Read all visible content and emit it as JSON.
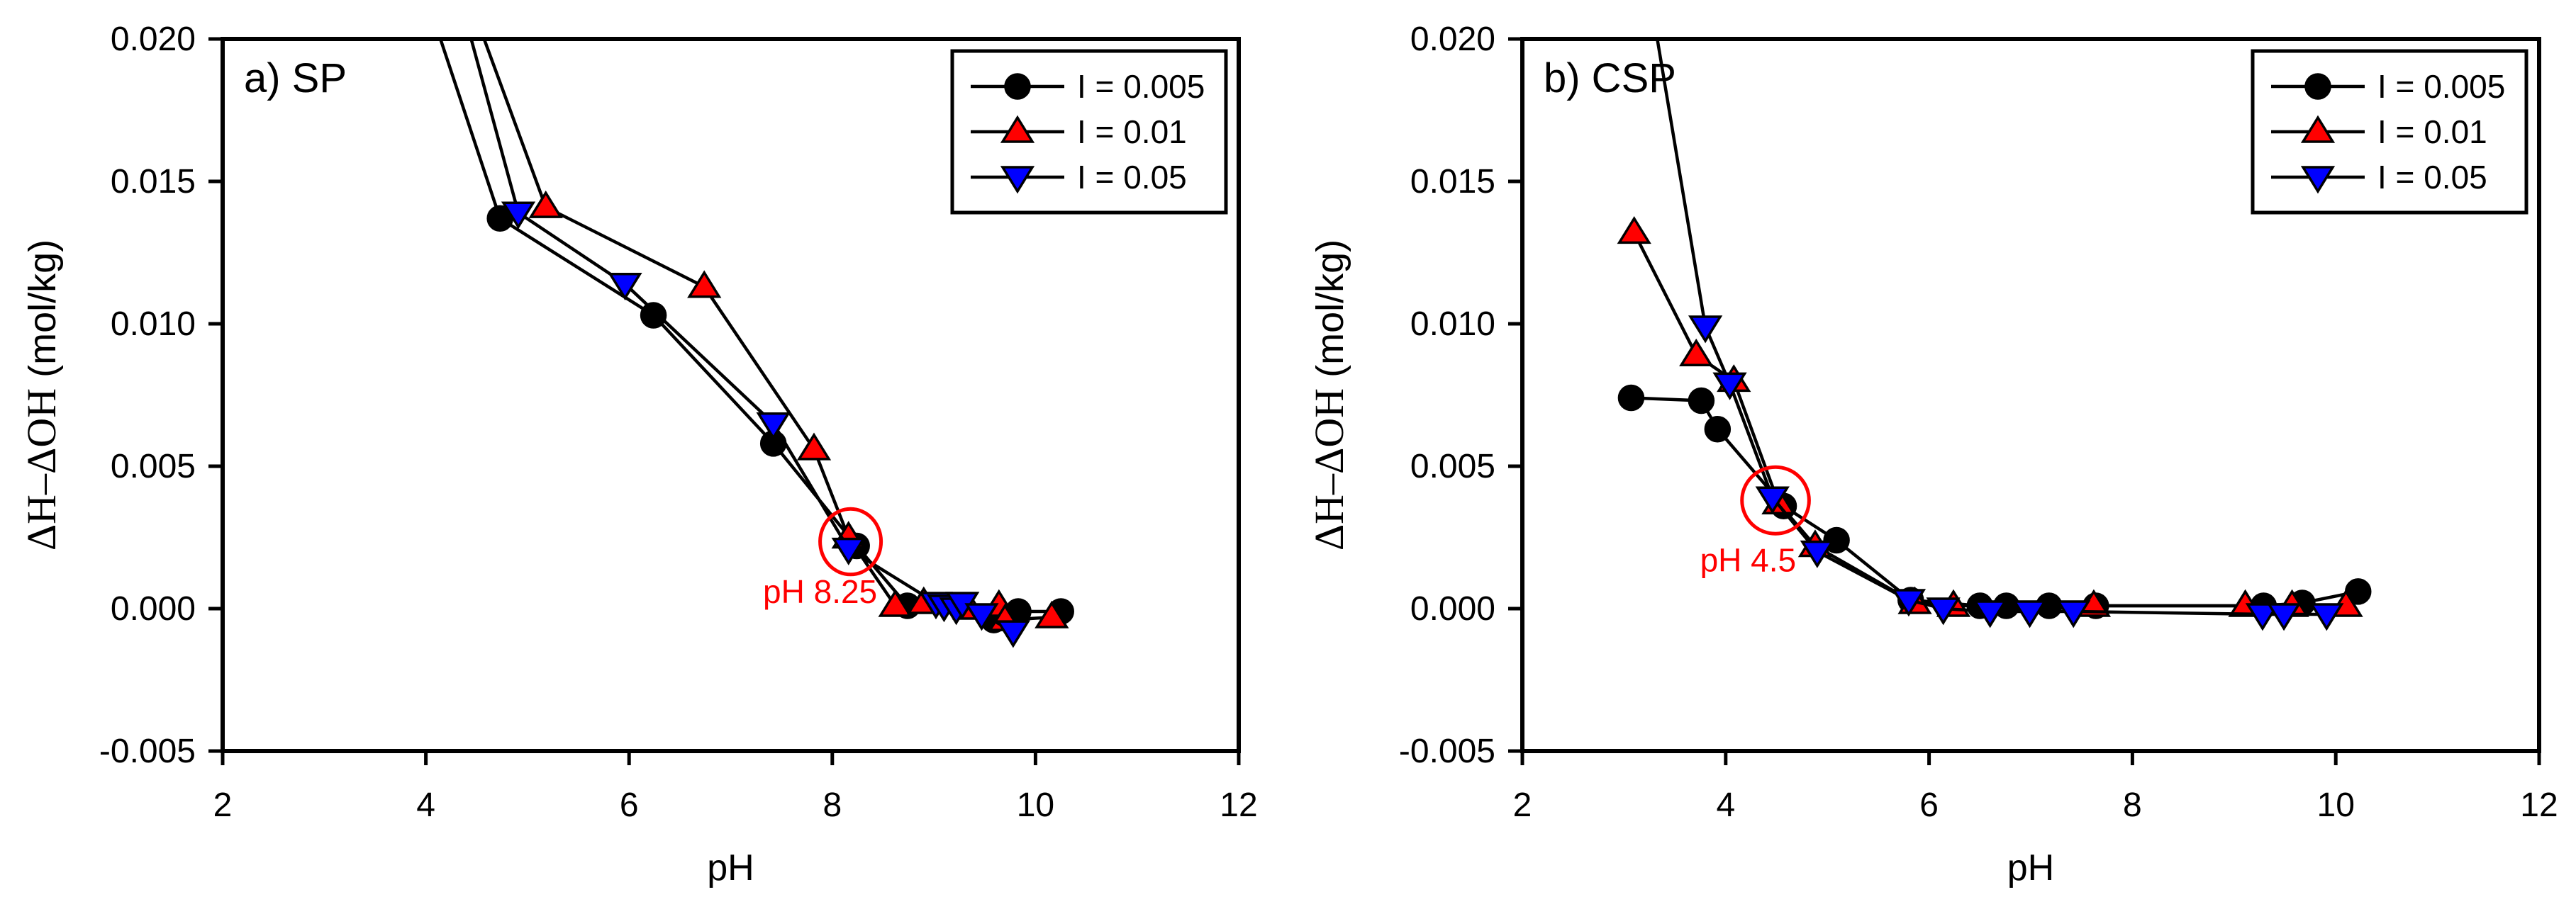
{
  "page": {
    "background": "#ffffff",
    "text_color": "#000000",
    "annotation_color": "#ff0000"
  },
  "chart_data": [
    {
      "type": "line",
      "panel_label": "a) SP",
      "xlabel": "pH",
      "ylabel_main": "ΔH–ΔOH",
      "ylabel_units": " (mol/kg)",
      "xlim": [
        2,
        12
      ],
      "ylim": [
        -0.005,
        0.02
      ],
      "xticks": [
        2,
        4,
        6,
        8,
        10,
        12
      ],
      "yticks": [
        -0.005,
        0.0,
        0.005,
        0.01,
        0.015,
        0.02
      ],
      "grid": false,
      "legend_position": "top-right",
      "series": [
        {
          "name": "I = 0.005",
          "marker": "circle",
          "color": "#000000",
          "points": [
            [
              4.05,
              0.021
            ],
            [
              4.73,
              0.0137
            ],
            [
              6.24,
              0.0103
            ],
            [
              7.42,
              0.0058
            ],
            [
              8.24,
              0.0022
            ],
            [
              8.74,
              0.0001
            ],
            [
              9.59,
              -0.0004
            ],
            [
              9.83,
              -0.0001
            ],
            [
              10.25,
              -0.0001
            ]
          ]
        },
        {
          "name": "I = 0.01",
          "marker": "triangle-up",
          "color": "#ff0000",
          "points": [
            [
              4.47,
              0.021
            ],
            [
              5.18,
              0.0141
            ],
            [
              6.74,
              0.0113
            ],
            [
              7.82,
              0.0056
            ],
            [
              8.16,
              0.0025
            ],
            [
              8.62,
              0.0001
            ],
            [
              8.9,
              0.0002
            ],
            [
              9.35,
              0.0
            ],
            [
              9.64,
              0.0001
            ],
            [
              9.7,
              -0.0004
            ],
            [
              10.16,
              -0.0003
            ]
          ]
        },
        {
          "name": "I = 0.05",
          "marker": "triangle-down",
          "color": "#0000ff",
          "points": [
            [
              4.37,
              0.021
            ],
            [
              4.91,
              0.0139
            ],
            [
              5.96,
              0.0114
            ],
            [
              7.42,
              0.0065
            ],
            [
              8.16,
              0.0021
            ],
            [
              9.02,
              0.0002
            ],
            [
              9.1,
              0.0001
            ],
            [
              9.22,
              0.0
            ],
            [
              9.28,
              0.0002
            ],
            [
              9.47,
              -0.0002
            ],
            [
              9.78,
              -0.0008
            ]
          ]
        }
      ],
      "annotation": {
        "label": "pH 8.25",
        "color": "#ff0000",
        "ellipse_center": [
          8.18,
          0.00235
        ],
        "ellipse_rx_data": 0.3,
        "ellipse_ry_data": 0.00115,
        "label_pos": [
          7.88,
          0.0006
        ]
      }
    },
    {
      "type": "line",
      "panel_label": "b) CSP",
      "xlabel": "pH",
      "ylabel_main": "ΔH–ΔOH",
      "ylabel_units": " (mol/kg)",
      "xlim": [
        2,
        12
      ],
      "ylim": [
        -0.005,
        0.02
      ],
      "xticks": [
        2,
        4,
        6,
        8,
        10,
        12
      ],
      "yticks": [
        -0.005,
        0.0,
        0.005,
        0.01,
        0.015,
        0.02
      ],
      "grid": false,
      "legend_position": "top-right",
      "series": [
        {
          "name": "I = 0.005",
          "marker": "circle",
          "color": "#000000",
          "points": [
            [
              3.07,
              0.0074
            ],
            [
              3.76,
              0.0073
            ],
            [
              3.92,
              0.0063
            ],
            [
              4.57,
              0.0036
            ],
            [
              5.09,
              0.0024
            ],
            [
              5.82,
              0.0003
            ],
            [
              6.5,
              0.0001
            ],
            [
              6.76,
              0.0001
            ],
            [
              7.18,
              0.0001
            ],
            [
              7.64,
              0.0001
            ],
            [
              9.29,
              0.0001
            ],
            [
              9.67,
              0.0002
            ],
            [
              10.22,
              0.0006
            ]
          ]
        },
        {
          "name": "I = 0.01",
          "marker": "triangle-up",
          "color": "#ff0000",
          "points": [
            [
              3.1,
              0.0132
            ],
            [
              3.71,
              0.0089
            ],
            [
              4.08,
              0.008
            ],
            [
              4.52,
              0.0037
            ],
            [
              4.88,
              0.0022
            ],
            [
              5.86,
              0.0002
            ],
            [
              6.24,
              0.0001
            ],
            [
              7.62,
              0.0001
            ],
            [
              9.11,
              0.0001
            ],
            [
              9.57,
              0.0001
            ],
            [
              10.1,
              0.0001
            ]
          ]
        },
        {
          "name": "I = 0.05",
          "marker": "triangle-down",
          "color": "#0000ff",
          "points": [
            [
              3.28,
              0.021
            ],
            [
              3.8,
              0.0099
            ],
            [
              4.04,
              0.0079
            ],
            [
              4.46,
              0.0039
            ],
            [
              4.9,
              0.002
            ],
            [
              5.8,
              0.0003
            ],
            [
              6.14,
              0.0
            ],
            [
              6.6,
              -0.0001
            ],
            [
              6.99,
              -0.0001
            ],
            [
              7.42,
              -0.0001
            ],
            [
              9.28,
              -0.0002
            ],
            [
              9.49,
              -0.0002
            ],
            [
              9.91,
              -0.0002
            ]
          ]
        }
      ],
      "annotation": {
        "label": "pH 4.5",
        "color": "#ff0000",
        "ellipse_center": [
          4.49,
          0.0038
        ],
        "ellipse_rx_data": 0.33,
        "ellipse_ry_data": 0.00117,
        "label_pos": [
          4.22,
          0.0017
        ]
      }
    }
  ]
}
